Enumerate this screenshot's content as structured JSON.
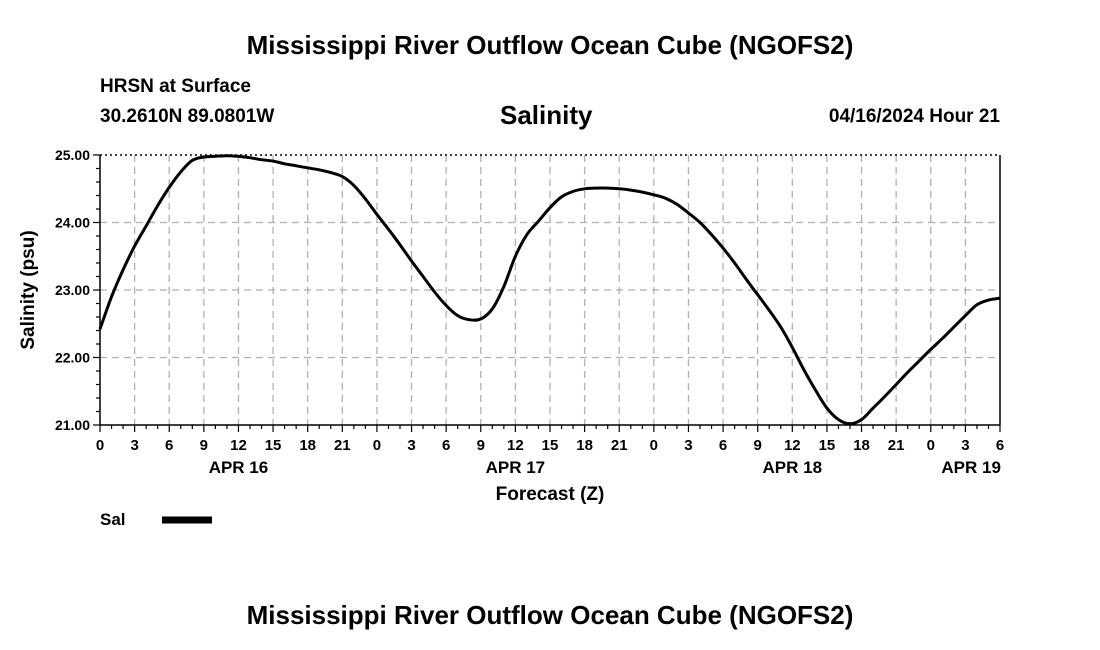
{
  "page_title": "Mississippi River Outflow Ocean Cube (NGOFS2)",
  "station": "HRSN at Surface",
  "coords": "30.2610N  89.0801W",
  "datetime": "04/16/2024 Hour 21",
  "footer_title": "Mississippi River Outflow Ocean Cube (NGOFS2)",
  "chart_data": {
    "type": "line",
    "title": "Salinity",
    "xlabel": "Forecast (Z)",
    "ylabel": "Salinity (psu)",
    "ylim": [
      21.0,
      25.0
    ],
    "xlim": [
      0,
      78
    ],
    "grid": true,
    "y_ticks": [
      "21.00",
      "22.00",
      "23.00",
      "24.00",
      "25.00"
    ],
    "y_tick_values": [
      21,
      22,
      23,
      24,
      25
    ],
    "x_tick_labels": [
      "0",
      "3",
      "6",
      "9",
      "12",
      "15",
      "18",
      "21",
      "0",
      "3",
      "6",
      "9",
      "12",
      "15",
      "18",
      "21",
      "0",
      "3",
      "6",
      "9",
      "12",
      "15",
      "18",
      "21",
      "0",
      "3",
      "6"
    ],
    "day_labels": [
      {
        "label": "APR 16",
        "hour": 12
      },
      {
        "label": "APR 17",
        "hour": 36
      },
      {
        "label": "APR 18",
        "hour": 60
      },
      {
        "label": "APR 19",
        "hour": 75.5
      }
    ],
    "legend": [
      {
        "name": "Sal",
        "color": "#000000"
      }
    ],
    "series": [
      {
        "name": "Sal",
        "x": [
          0,
          1,
          2,
          3,
          4,
          5,
          6,
          7,
          8,
          9,
          10,
          11,
          12,
          13,
          14,
          15,
          16,
          17,
          18,
          19,
          20,
          21,
          22,
          23,
          24,
          25,
          26,
          27,
          28,
          29,
          30,
          31,
          32,
          33,
          34,
          35,
          36,
          37,
          38,
          39,
          40,
          41,
          42,
          43,
          44,
          45,
          46,
          47,
          48,
          49,
          50,
          51,
          52,
          53,
          54,
          55,
          56,
          57,
          58,
          59,
          60,
          61,
          62,
          63,
          64,
          65,
          66,
          67,
          68,
          69,
          70,
          71,
          72,
          73,
          74,
          75,
          76,
          77,
          78
        ],
        "y": [
          22.42,
          22.9,
          23.3,
          23.65,
          23.95,
          24.25,
          24.52,
          24.75,
          24.92,
          24.97,
          24.98,
          24.99,
          24.98,
          24.96,
          24.93,
          24.91,
          24.87,
          24.84,
          24.81,
          24.78,
          24.74,
          24.68,
          24.55,
          24.35,
          24.12,
          23.9,
          23.67,
          23.43,
          23.2,
          22.97,
          22.77,
          22.62,
          22.56,
          22.57,
          22.72,
          23.05,
          23.5,
          23.82,
          24.02,
          24.22,
          24.38,
          24.46,
          24.5,
          24.51,
          24.51,
          24.5,
          24.48,
          24.45,
          24.41,
          24.36,
          24.27,
          24.14,
          24.0,
          23.82,
          23.62,
          23.4,
          23.16,
          22.93,
          22.7,
          22.45,
          22.15,
          21.82,
          21.52,
          21.25,
          21.08,
          21.02,
          21.08,
          21.25,
          21.42,
          21.6,
          21.78,
          21.95,
          22.12,
          22.28,
          22.45,
          22.62,
          22.78,
          22.85,
          22.88
        ]
      }
    ]
  }
}
